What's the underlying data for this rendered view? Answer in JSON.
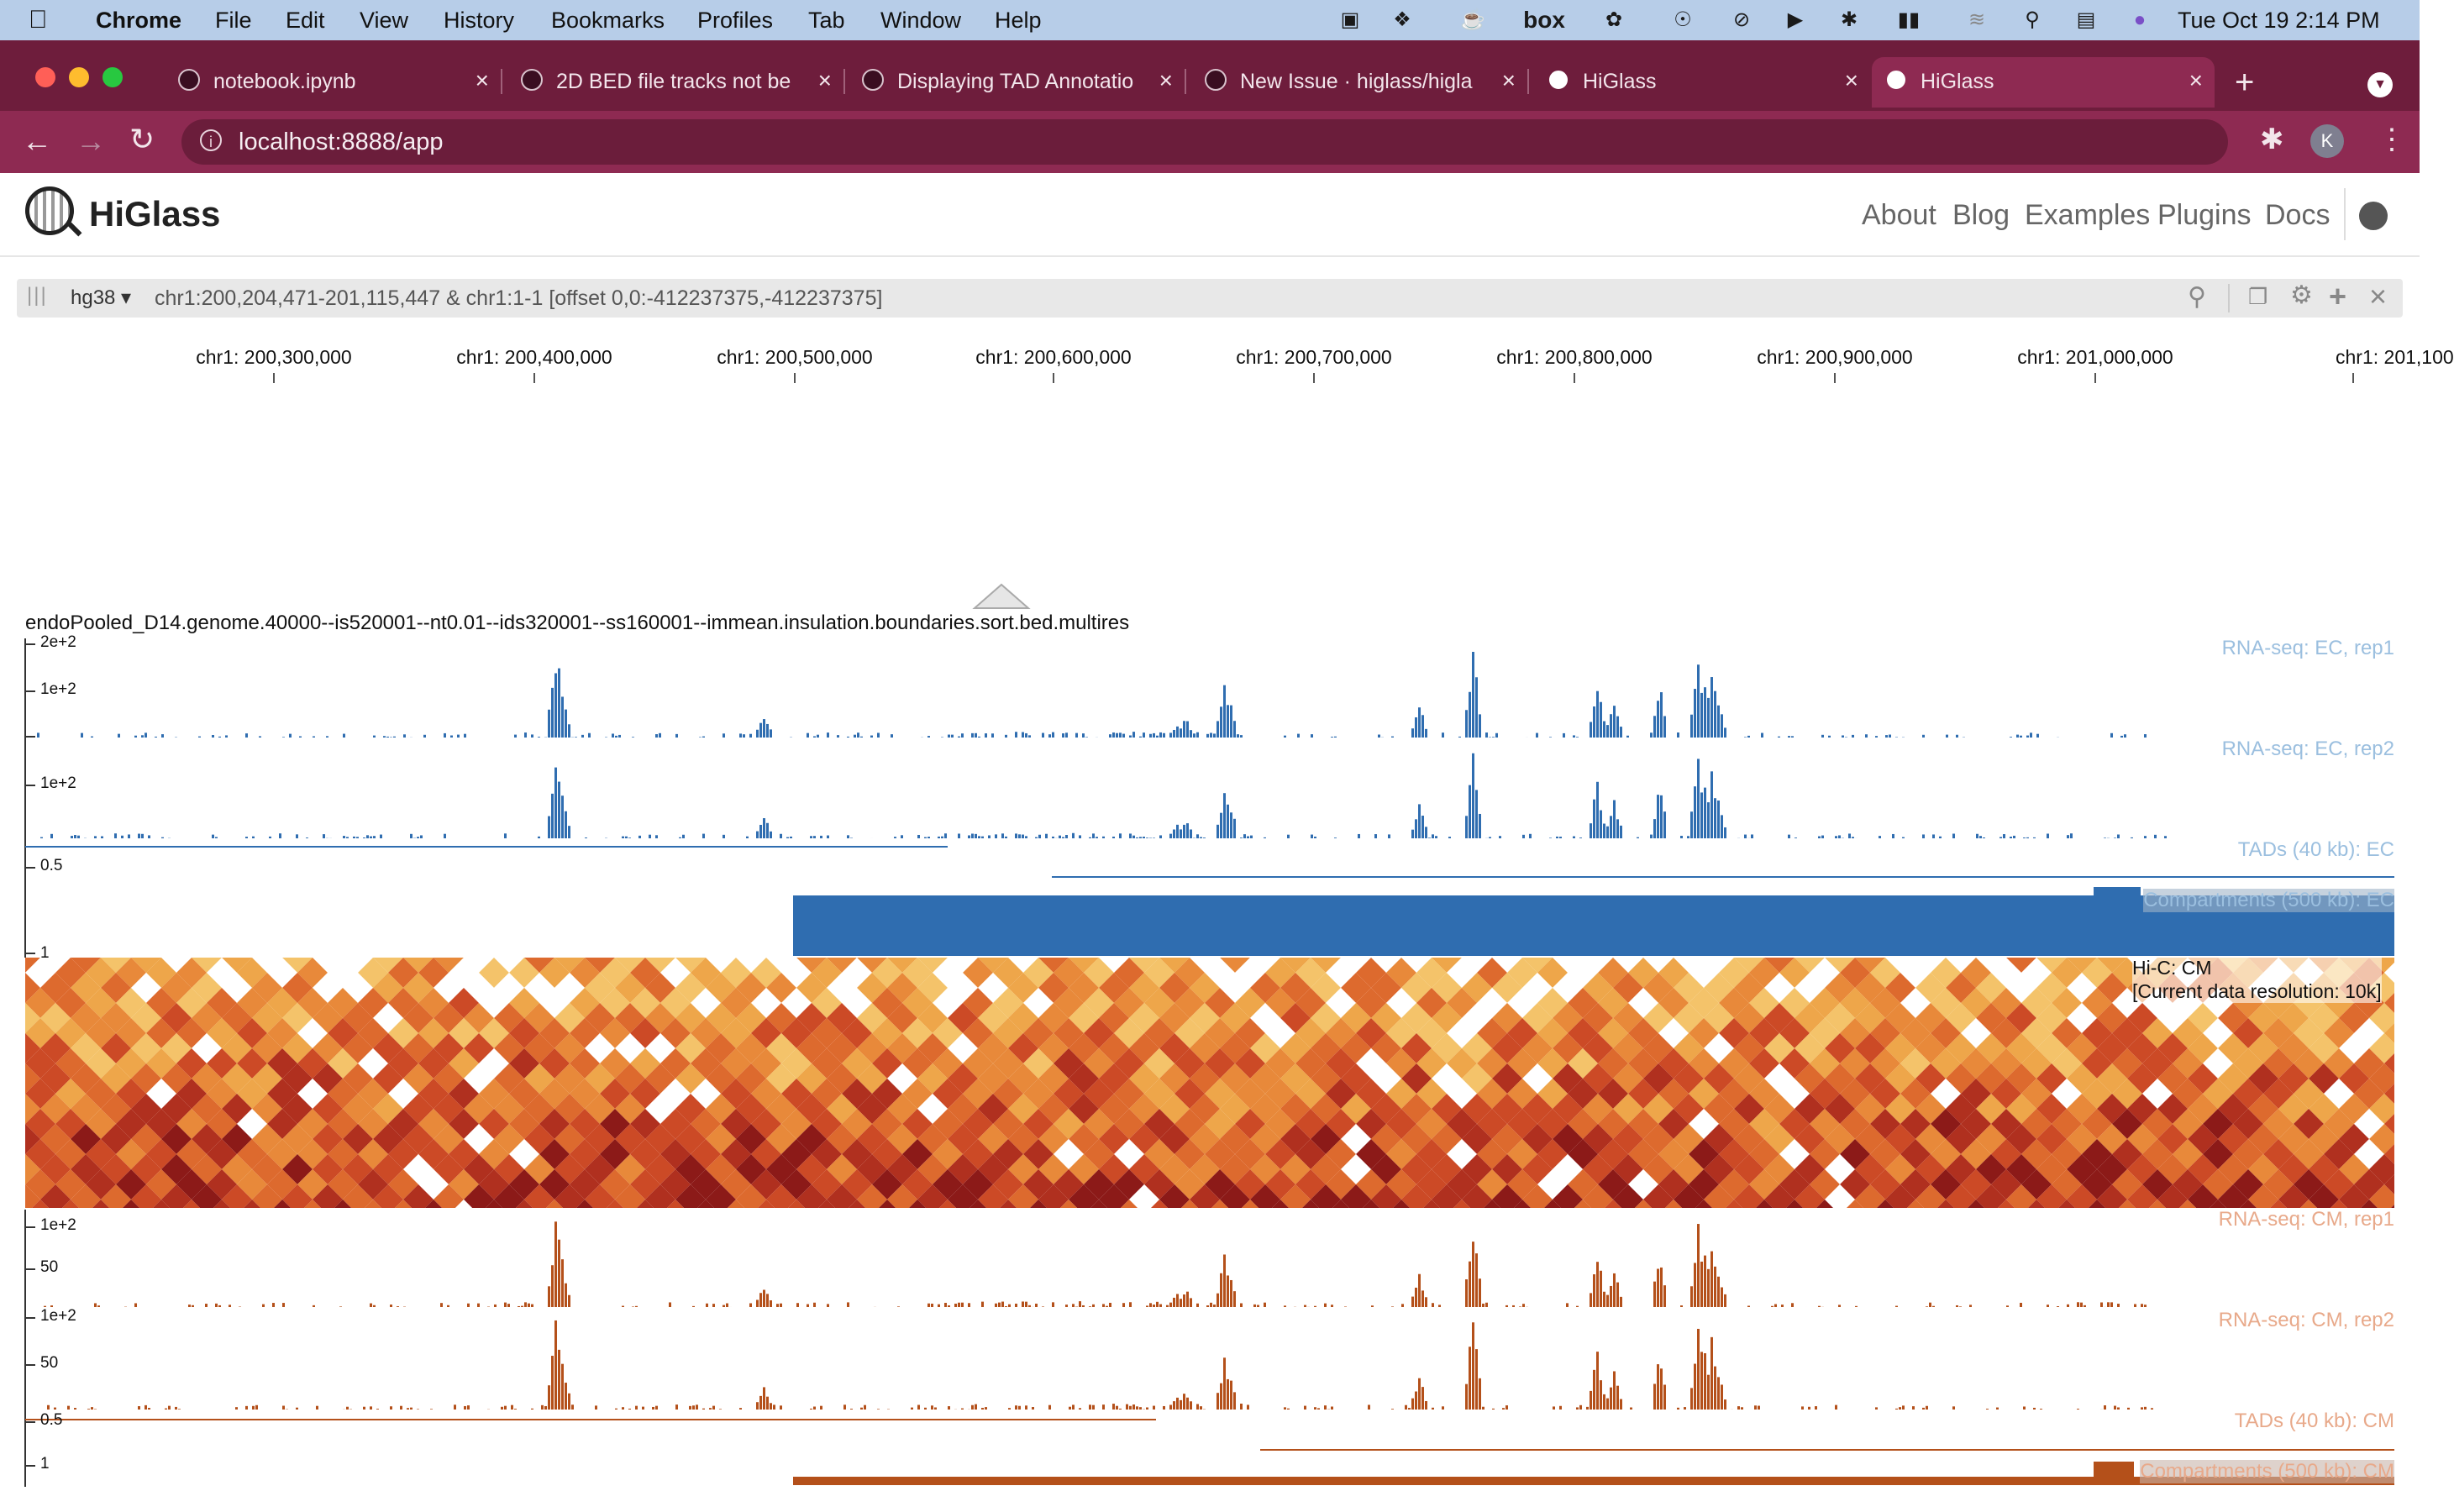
{
  "menubar": {
    "app": "Chrome",
    "items": [
      "File",
      "Edit",
      "View",
      "History",
      "Bookmarks",
      "Profiles",
      "Tab",
      "Window",
      "Help"
    ],
    "clock": "Tue Oct 19  2:14 PM",
    "box_label": "box",
    "status_icons": [
      "docker-icon",
      "dropbox-icon",
      "coffee-icon",
      "box-icon",
      "creative-cloud-icon",
      "shield-icon",
      "vpn-icon",
      "play-icon",
      "bluetooth-icon",
      "battery-icon",
      "wifi-icon",
      "search-icon",
      "control-center-icon",
      "siri-icon"
    ]
  },
  "tabs": [
    {
      "title": "notebook.ipynb",
      "icon": "github-icon"
    },
    {
      "title": "2D BED file tracks not be",
      "icon": "github-icon"
    },
    {
      "title": "Displaying TAD Annotatio",
      "icon": "github-icon"
    },
    {
      "title": "New Issue · higlass/higla",
      "icon": "github-icon"
    },
    {
      "title": "HiGlass",
      "icon": "globe-icon"
    },
    {
      "title": "HiGlass",
      "icon": "globe-icon",
      "active": true
    }
  ],
  "toolbar": {
    "url": "localhost:8888/app",
    "profile_initial": "K"
  },
  "header": {
    "brand": "HiGlass",
    "nav": [
      "About",
      "Blog",
      "Examples",
      "Plugins",
      "Docs"
    ]
  },
  "view": {
    "assembly": "hg38",
    "location": "chr1:200,204,471-201,115,447 & chr1:1-1 [offset 0,0:-412237375,-412237375]"
  },
  "axis": {
    "ticks": [
      "chr1: 200,300,000",
      "chr1: 200,400,000",
      "chr1: 200,500,000",
      "chr1: 200,600,000",
      "chr1: 200,700,000",
      "chr1: 200,800,000",
      "chr1: 200,900,000",
      "chr1: 201,000,000",
      "chr1: 201,100"
    ]
  },
  "tracks": {
    "boundaries_title": "endoPooled_D14.genome.40000--is520001--nt0.01--ids320001--ss160001--immean.insulation.boundaries.sort.bed.multires",
    "rna_ec1": {
      "label": "RNA-seq: EC, rep1",
      "ymax": "2e+2",
      "ymid": "1e+2"
    },
    "rna_ec2": {
      "label": "RNA-seq: EC, rep2",
      "ymid": "1e+2"
    },
    "tads_ec": {
      "label": "TADs (40 kb): EC",
      "y": "0.5"
    },
    "comp_ec": {
      "label": "Compartments (500 kb): EC",
      "y": "1"
    },
    "hic_cm": {
      "label": "Hi-C: CM",
      "resolution": "[Current data resolution: 10k]"
    },
    "rna_cm1": {
      "label": "RNA-seq: CM, rep1",
      "ymax": "1e+2",
      "ymid": "50"
    },
    "rna_cm2": {
      "label": "RNA-seq: CM, rep2",
      "ymax": "1e+2",
      "ymid": "50"
    },
    "tads_cm": {
      "label": "TADs (40 kb): CM",
      "y": "0.5"
    },
    "comp_cm": {
      "label": "Compartments (500 kb): CM",
      "y": "1"
    }
  },
  "colors": {
    "ec_blue": "#2f6db0",
    "cm_orange": "#b4501a",
    "label_ec": "#9bbfdf",
    "label_cm": "#e8a98a"
  }
}
